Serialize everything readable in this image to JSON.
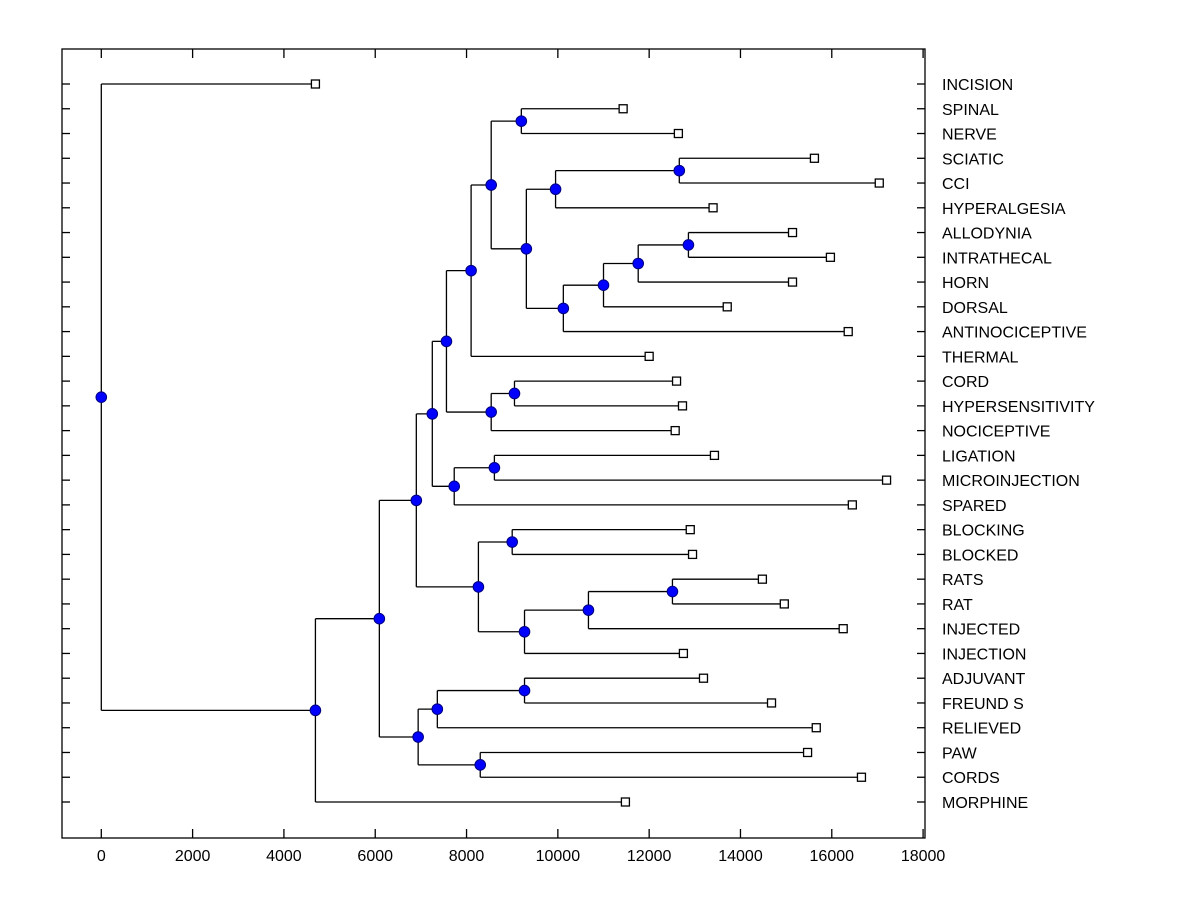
{
  "chart_data": {
    "type": "dendrogram",
    "title": "",
    "xlabel": "",
    "ylabel": "",
    "xlim": [
      -900,
      18000
    ],
    "x_ticks": [
      0,
      2000,
      4000,
      6000,
      8000,
      10000,
      12000,
      14000,
      16000,
      18000
    ],
    "x_tick_labels": [
      "0",
      "2000",
      "4000",
      "6000",
      "8000",
      "10000",
      "12000",
      "14000",
      "16000",
      "18000"
    ],
    "grid": false,
    "legend": "none",
    "colors": {
      "line": "#000000",
      "node_fill": "#0000ff",
      "leaf_fill": "#ffffff"
    },
    "leaves": [
      {
        "label": "INCISION",
        "x": 4690
      },
      {
        "label": "SPINAL",
        "x": 11430
      },
      {
        "label": "NERVE",
        "x": 12640
      },
      {
        "label": "SCIATIC",
        "x": 15620
      },
      {
        "label": "CCI",
        "x": 17040
      },
      {
        "label": "HYPERALGESIA",
        "x": 13400
      },
      {
        "label": "ALLODYNIA",
        "x": 15140
      },
      {
        "label": "INTRATHECAL",
        "x": 15970
      },
      {
        "label": "HORN",
        "x": 15140
      },
      {
        "label": "DORSAL",
        "x": 13710
      },
      {
        "label": "ANTINOCICEPTIVE",
        "x": 16360
      },
      {
        "label": "THERMAL",
        "x": 12000
      },
      {
        "label": "CORD",
        "x": 12600
      },
      {
        "label": "HYPERSENSITIVITY",
        "x": 12730
      },
      {
        "label": "NOCICEPTIVE",
        "x": 12570
      },
      {
        "label": "LIGATION",
        "x": 13430
      },
      {
        "label": "MICROINJECTION",
        "x": 17200
      },
      {
        "label": "SPARED",
        "x": 16450
      },
      {
        "label": "BLOCKING",
        "x": 12900
      },
      {
        "label": "BLOCKED",
        "x": 12950
      },
      {
        "label": "RATS",
        "x": 14480
      },
      {
        "label": "RAT",
        "x": 14960
      },
      {
        "label": "INJECTED",
        "x": 16250
      },
      {
        "label": "INJECTION",
        "x": 12750
      },
      {
        "label": "ADJUVANT",
        "x": 13190
      },
      {
        "label": "FREUND S",
        "x": 14680
      },
      {
        "label": "RELIEVED",
        "x": 15660
      },
      {
        "label": "PAW",
        "x": 15470
      },
      {
        "label": "CORDS",
        "x": 16650
      },
      {
        "label": "MORPHINE",
        "x": 11480
      }
    ],
    "merges": [
      {
        "id": "n1",
        "x": 9200,
        "children": [
          "SPINAL",
          "NERVE"
        ]
      },
      {
        "id": "n2",
        "x": 12660,
        "children": [
          "SCIATIC",
          "CCI"
        ]
      },
      {
        "id": "n3",
        "x": 9950,
        "children": [
          "n2",
          "HYPERALGESIA"
        ]
      },
      {
        "id": "n4",
        "x": 12860,
        "children": [
          "ALLODYNIA",
          "INTRATHECAL"
        ]
      },
      {
        "id": "n5",
        "x": 11760,
        "children": [
          "n4",
          "HORN"
        ]
      },
      {
        "id": "n6",
        "x": 11000,
        "children": [
          "n5",
          "DORSAL"
        ]
      },
      {
        "id": "n7",
        "x": 10120,
        "children": [
          "n6",
          "ANTINOCICEPTIVE"
        ]
      },
      {
        "id": "n8",
        "x": 9310,
        "children": [
          "n3",
          "n7"
        ]
      },
      {
        "id": "n9",
        "x": 8540,
        "children": [
          "n1",
          "n8"
        ]
      },
      {
        "id": "n10",
        "x": 8100,
        "children": [
          "n9",
          "THERMAL"
        ]
      },
      {
        "id": "n11",
        "x": 9050,
        "children": [
          "CORD",
          "HYPERSENSITIVITY"
        ]
      },
      {
        "id": "n12",
        "x": 8540,
        "children": [
          "n11",
          "NOCICEPTIVE"
        ]
      },
      {
        "id": "n13",
        "x": 7560,
        "children": [
          "n10",
          "n12"
        ]
      },
      {
        "id": "n14",
        "x": 8610,
        "children": [
          "LIGATION",
          "MICROINJECTION"
        ]
      },
      {
        "id": "n15",
        "x": 7730,
        "children": [
          "n14",
          "SPARED"
        ]
      },
      {
        "id": "n16",
        "x": 7250,
        "children": [
          "n13",
          "n15"
        ]
      },
      {
        "id": "n17",
        "x": 9000,
        "children": [
          "BLOCKING",
          "BLOCKED"
        ]
      },
      {
        "id": "n18",
        "x": 12510,
        "children": [
          "RATS",
          "RAT"
        ]
      },
      {
        "id": "n19",
        "x": 10670,
        "children": [
          "n18",
          "INJECTED"
        ]
      },
      {
        "id": "n20",
        "x": 9270,
        "children": [
          "n19",
          "INJECTION"
        ]
      },
      {
        "id": "n21",
        "x": 8260,
        "children": [
          "n17",
          "n20"
        ]
      },
      {
        "id": "n22",
        "x": 6900,
        "children": [
          "n16",
          "n21"
        ]
      },
      {
        "id": "n23",
        "x": 9270,
        "children": [
          "ADJUVANT",
          "FREUND S"
        ]
      },
      {
        "id": "n24",
        "x": 7360,
        "children": [
          "n23",
          "RELIEVED"
        ]
      },
      {
        "id": "n25",
        "x": 8300,
        "children": [
          "PAW",
          "CORDS"
        ]
      },
      {
        "id": "n26",
        "x": 6940,
        "children": [
          "n24",
          "n25"
        ]
      },
      {
        "id": "n27",
        "x": 6090,
        "children": [
          "n22",
          "n26"
        ]
      },
      {
        "id": "n28",
        "x": 4690,
        "children": [
          "n27",
          "MORPHINE"
        ]
      },
      {
        "id": "n29",
        "x": 0,
        "children": [
          "INCISION",
          "n28"
        ]
      }
    ]
  }
}
